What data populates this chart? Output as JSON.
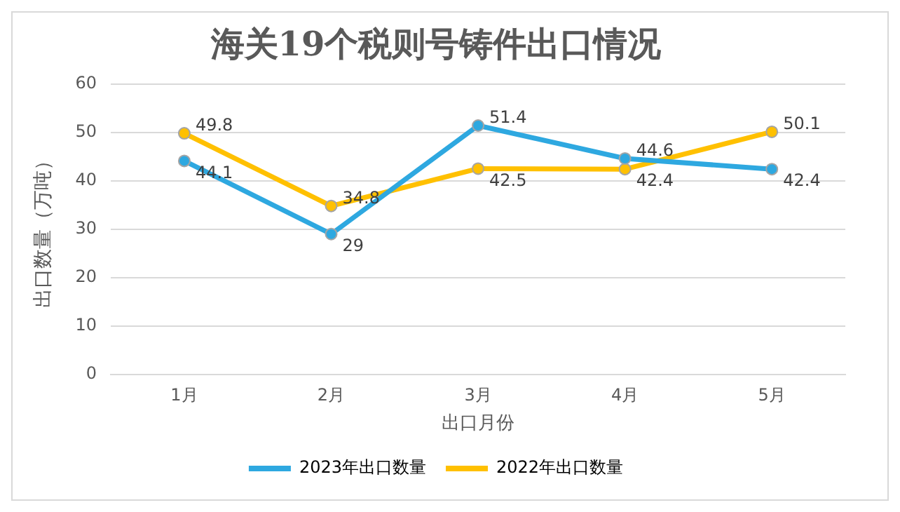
{
  "chart_data": {
    "type": "line",
    "title": "海关19个税则号铸件出口情况",
    "xlabel": "出口月份",
    "ylabel": "出口数量（万吨）",
    "categories": [
      "1月",
      "2月",
      "3月",
      "4月",
      "5月"
    ],
    "series": [
      {
        "name": "2023年出口数量",
        "color": "#2ea8e0",
        "values": [
          44.1,
          29,
          51.4,
          44.6,
          42.4
        ]
      },
      {
        "name": "2022年出口数量",
        "color": "#ffc000",
        "values": [
          49.8,
          34.8,
          42.5,
          42.4,
          50.1
        ]
      }
    ],
    "ylim": [
      0,
      60
    ],
    "yticks": [
      0,
      10,
      20,
      30,
      40,
      50,
      60
    ],
    "grid": "y",
    "legend": "bottom",
    "marker": "circle",
    "line_style": "solid",
    "data_labels": true
  }
}
